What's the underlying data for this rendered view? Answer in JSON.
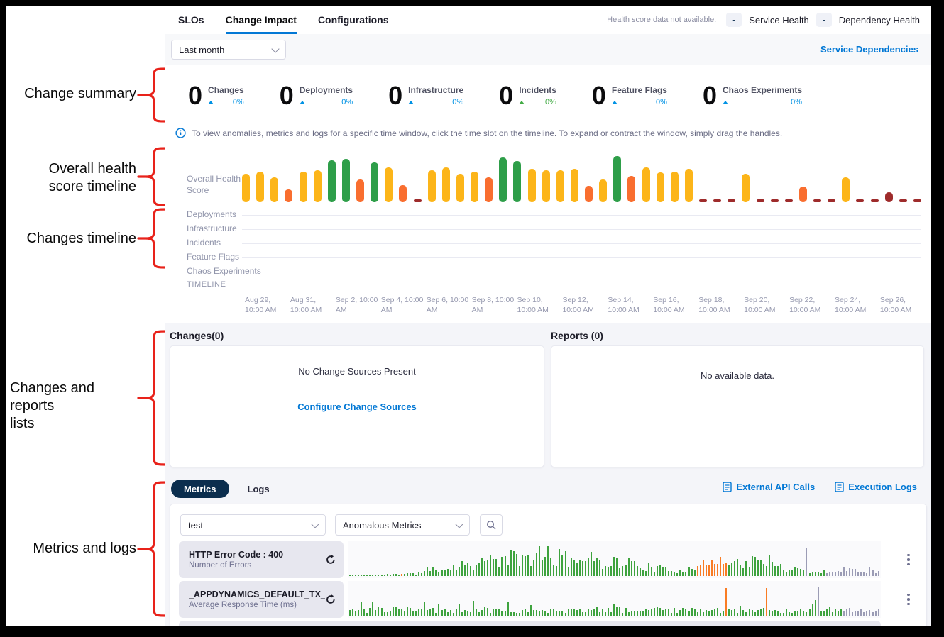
{
  "annotations": [
    {
      "lines": [
        "Change summary"
      ]
    },
    {
      "lines": [
        "Overall health",
        "score timeline"
      ]
    },
    {
      "lines": [
        "Changes timeline"
      ]
    },
    {
      "lines": [
        "Changes and reports",
        "lists"
      ]
    },
    {
      "lines": [
        "Metrics and logs"
      ]
    }
  ],
  "annotation_color": "#e8221a",
  "header": {
    "tabs": [
      {
        "label": "SLOs",
        "active": false
      },
      {
        "label": "Change Impact",
        "active": true
      },
      {
        "label": "Configurations",
        "active": false
      }
    ],
    "health_note": "Health score data not available.",
    "badges": [
      {
        "value": "-",
        "label": "Service Health"
      },
      {
        "value": "-",
        "label": "Dependency Health"
      }
    ]
  },
  "toolbar": {
    "time_range": "Last month",
    "service_dependencies_label": "Service Dependencies"
  },
  "summary": {
    "stats": [
      {
        "value": "0",
        "label": "Changes",
        "percent": "0%",
        "tone": "#0092e4"
      },
      {
        "value": "0",
        "label": "Deployments",
        "percent": "0%",
        "tone": "#0092e4"
      },
      {
        "value": "0",
        "label": "Infrastructure",
        "percent": "0%",
        "tone": "#0092e4"
      },
      {
        "value": "0",
        "label": "Incidents",
        "percent": "0%",
        "tone": "#42ab45"
      },
      {
        "value": "0",
        "label": "Feature Flags",
        "percent": "0%",
        "tone": "#0092e4"
      },
      {
        "value": "0",
        "label": "Chaos Experiments",
        "percent": "0%",
        "tone": "#0092e4"
      }
    ]
  },
  "info_banner": "To view anomalies, metrics and logs for a specific time window, click the time slot on the timeline. To expand or contract the window, simply drag the handles.",
  "change_rows": [
    "Deployments",
    "Infrastructure",
    "Incidents",
    "Feature Flags",
    "Chaos Experiments"
  ],
  "timeline": {
    "label": "TIMELINE",
    "ticks": [
      "Aug 29, 10:00 AM",
      "Aug 31, 10:00 AM",
      "Sep 2, 10:00 AM",
      "Sep 4, 10:00 AM",
      "Sep 6, 10:00 AM",
      "Sep 8, 10:00 AM",
      "Sep 10, 10:00 AM",
      "Sep 12, 10:00 AM",
      "Sep 14, 10:00 AM",
      "Sep 16, 10:00 AM",
      "Sep 18, 10:00 AM",
      "Sep 20, 10:00 AM",
      "Sep 22, 10:00 AM",
      "Sep 24, 10:00 AM",
      "Sep 26, 10:00 AM"
    ]
  },
  "changes_panel": {
    "title": "Changes(0)",
    "empty": "No Change Sources Present",
    "link": "Configure Change Sources"
  },
  "reports_panel": {
    "title": "Reports (0)",
    "empty": "No available data."
  },
  "metrics": {
    "tabs": [
      {
        "label": "Metrics",
        "active": true
      },
      {
        "label": "Logs",
        "active": false
      }
    ],
    "links": [
      {
        "label": "External API Calls",
        "icon": "api-calls-icon"
      },
      {
        "label": "Execution Logs",
        "icon": "execution-logs-icon"
      }
    ],
    "service_filter": "test",
    "metric_filter": "Anomalous Metrics",
    "rows": [
      {
        "title": "HTTP Error Code : 400",
        "subtitle": "Number of Errors"
      },
      {
        "title": "_APPDYNAMICS_DEFAULT_TX_",
        "subtitle": "Average Response Time (ms)"
      }
    ]
  },
  "chart_data": [
    {
      "id": "overall-health-score",
      "type": "bar",
      "title": "Overall Health Score",
      "ylabel": "health score",
      "palette": {
        "y": "#fcb519",
        "g": "#2e9e49",
        "o": "#f96e2f",
        "r": "#9e2b2b"
      },
      "bars": [
        [
          "y",
          55
        ],
        [
          "y",
          60
        ],
        [
          "y",
          48
        ],
        [
          "o",
          25
        ],
        [
          "y",
          60
        ],
        [
          "y",
          62
        ],
        [
          "g",
          82
        ],
        [
          "g",
          85
        ],
        [
          "o",
          45
        ],
        [
          "g",
          78
        ],
        [
          "y",
          68
        ],
        [
          "o",
          33
        ],
        [
          "r",
          6
        ],
        [
          "y",
          62
        ],
        [
          "y",
          68
        ],
        [
          "y",
          55
        ],
        [
          "y",
          60
        ],
        [
          "o",
          48
        ],
        [
          "g",
          88
        ],
        [
          "g",
          80
        ],
        [
          "y",
          65
        ],
        [
          "y",
          63
        ],
        [
          "y",
          62
        ],
        [
          "y",
          65
        ],
        [
          "o",
          32
        ],
        [
          "y",
          45
        ],
        [
          "g",
          90
        ],
        [
          "o",
          52
        ],
        [
          "y",
          68
        ],
        [
          "y",
          58
        ],
        [
          "y",
          60
        ],
        [
          "y",
          65
        ],
        [
          "r",
          6
        ],
        [
          "r",
          6
        ],
        [
          "r",
          6
        ],
        [
          "y",
          55
        ],
        [
          "r",
          6
        ],
        [
          "r",
          6
        ],
        [
          "r",
          6
        ],
        [
          "o",
          30
        ],
        [
          "r",
          6
        ],
        [
          "r",
          6
        ],
        [
          "y",
          48
        ],
        [
          "r",
          6
        ],
        [
          "r",
          6
        ],
        [
          "r",
          20
        ],
        [
          "r",
          6
        ],
        [
          "r",
          6
        ]
      ]
    },
    {
      "id": "metric-spark-http-400",
      "type": "bar",
      "series": "HTTP Error Code : 400",
      "bars": 185,
      "seed": 11,
      "envelope": [
        [
          0,
          0.04
        ],
        [
          0.06,
          0.06
        ],
        [
          0.12,
          0.1
        ],
        [
          0.18,
          0.35
        ],
        [
          0.24,
          0.6
        ],
        [
          0.3,
          0.75
        ],
        [
          0.38,
          0.8
        ],
        [
          0.46,
          0.7
        ],
        [
          0.52,
          0.6
        ],
        [
          0.58,
          0.35
        ],
        [
          0.62,
          0.2
        ],
        [
          0.665,
          0.45
        ],
        [
          0.71,
          0.5
        ],
        [
          0.75,
          0.65
        ],
        [
          0.8,
          0.5
        ],
        [
          0.85,
          0.3
        ],
        [
          0.88,
          0.15
        ],
        [
          0.92,
          0.22
        ],
        [
          0.96,
          0.28
        ],
        [
          1,
          0.15
        ]
      ],
      "orange_ranges": [
        [
          0.093,
          0.103
        ],
        [
          0.655,
          0.715
        ]
      ],
      "gray_ranges": [
        [
          0.9,
          1.0
        ]
      ],
      "gray_spikes": [
        0.865
      ],
      "orange_spikes": [],
      "spike_prob": 0.08,
      "spike_mult": 1.5,
      "colors": {
        "green": "#3ea33e",
        "orange": "#f97c24",
        "gray": "#9b9cb5"
      }
    },
    {
      "id": "metric-spark-appd-tx",
      "type": "bar",
      "series": "_APPDYNAMICS_DEFAULT_TX_",
      "bars": 185,
      "seed": 23,
      "envelope": [
        [
          0,
          0.24
        ],
        [
          0.1,
          0.26
        ],
        [
          0.2,
          0.22
        ],
        [
          0.3,
          0.26
        ],
        [
          0.4,
          0.22
        ],
        [
          0.5,
          0.26
        ],
        [
          0.6,
          0.22
        ],
        [
          0.7,
          0.26
        ],
        [
          0.8,
          0.22
        ],
        [
          0.9,
          0.26
        ],
        [
          1,
          0.22
        ]
      ],
      "orange_ranges": [],
      "gray_ranges": [
        [
          0.93,
          1.0
        ]
      ],
      "gray_spikes": [
        0.885
      ],
      "orange_spikes": [
        0.71,
        0.79
      ],
      "spike_prob": 0.12,
      "spike_mult": 1.9,
      "colors": {
        "green": "#3ea33e",
        "orange": "#f97c24",
        "gray": "#9b9cb5"
      }
    }
  ]
}
